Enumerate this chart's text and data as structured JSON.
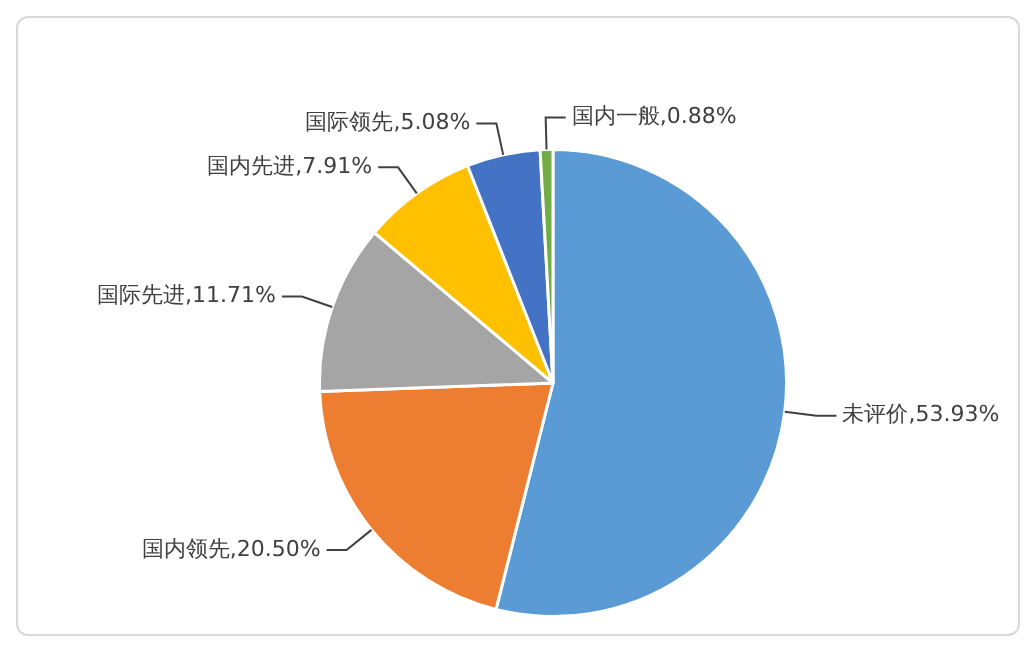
{
  "chart_data": {
    "type": "pie",
    "categories": [
      "未评价",
      "国内领先",
      "国际先进",
      "国内先进",
      "国际领先",
      "国内一般"
    ],
    "values": [
      53.93,
      20.5,
      11.71,
      7.91,
      5.08,
      0.88
    ],
    "value_labels": [
      "53.93%",
      "20.50%",
      "11.71%",
      "7.91%",
      "5.08%",
      "0.88%"
    ],
    "colors": [
      "#5b9bd5",
      "#ed7d31",
      "#a5a5a5",
      "#ffc000",
      "#4472c4",
      "#70ad47"
    ],
    "legend": false
  }
}
